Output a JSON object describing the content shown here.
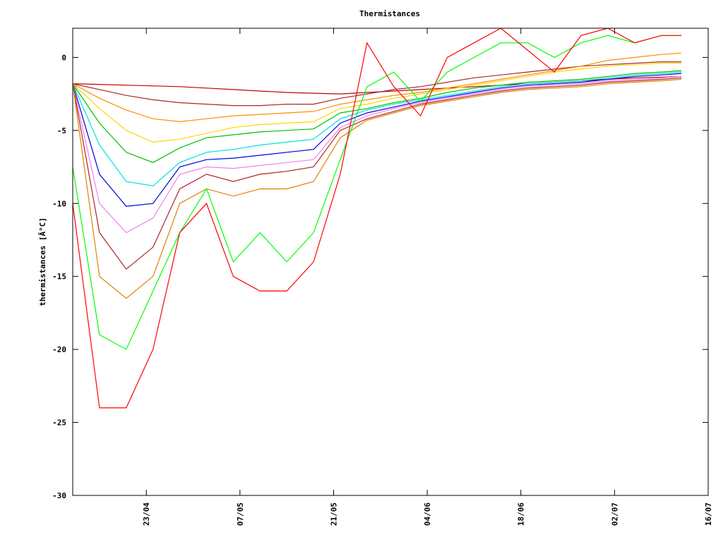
{
  "chart_data": {
    "type": "line",
    "title": "Thermistances",
    "y_label": "thermistances [Â°C]",
    "x": [
      "12/04",
      "16/04",
      "20/04",
      "24/04",
      "28/04",
      "02/05",
      "06/05",
      "10/05",
      "14/05",
      "18/05",
      "22/05",
      "26/05",
      "30/05",
      "03/06",
      "07/06",
      "11/06",
      "15/06",
      "19/06",
      "23/06",
      "27/06",
      "01/07",
      "05/07",
      "09/07",
      "12/07"
    ],
    "xlim": [
      "12/04",
      "16/07"
    ],
    "xticks": [
      "23/04",
      "07/05",
      "21/05",
      "04/06",
      "18/06",
      "02/07",
      "16/07"
    ],
    "ylim": [
      -30,
      2
    ],
    "yticks": [
      -30,
      -25,
      -20,
      -15,
      -10,
      -5,
      0
    ],
    "series": [
      {
        "color": "#c00000",
        "values": [
          -1.8,
          -1.85,
          -1.9,
          -1.95,
          -2.0,
          -2.1,
          -2.2,
          -2.3,
          -2.4,
          -2.45,
          -2.5,
          -2.4,
          -2.3,
          -2.2,
          -2.1,
          -2.0,
          -1.9,
          -1.8,
          -1.7,
          -1.6,
          -1.5,
          -1.4,
          -1.35,
          -1.3
        ]
      },
      {
        "color": "#a52a2a",
        "values": [
          -1.8,
          -2.2,
          -2.6,
          -2.9,
          -3.1,
          -3.2,
          -3.3,
          -3.3,
          -3.2,
          -3.2,
          -2.8,
          -2.5,
          -2.2,
          -2.0,
          -1.7,
          -1.4,
          -1.2,
          -1.0,
          -0.8,
          -0.6,
          -0.5,
          -0.4,
          -0.3,
          -0.3
        ]
      },
      {
        "color": "#ff8c00",
        "values": [
          -1.8,
          -2.8,
          -3.6,
          -4.2,
          -4.4,
          -4.2,
          -4.0,
          -3.9,
          -3.8,
          -3.7,
          -3.2,
          -2.9,
          -2.6,
          -2.4,
          -2.1,
          -1.8,
          -1.5,
          -1.2,
          -0.9,
          -0.6,
          -0.2,
          0.0,
          0.2,
          0.3
        ]
      },
      {
        "color": "#ffd700",
        "values": [
          -1.8,
          -3.5,
          -5.0,
          -5.8,
          -5.6,
          -5.2,
          -4.8,
          -4.6,
          -4.5,
          -4.4,
          -3.5,
          -3.2,
          -2.8,
          -2.5,
          -2.2,
          -1.9,
          -1.6,
          -1.3,
          -1.0,
          -0.8,
          -0.6,
          -0.5,
          -0.4,
          -0.4
        ]
      },
      {
        "color": "#00c000",
        "values": [
          -1.8,
          -4.5,
          -6.5,
          -7.2,
          -6.2,
          -5.5,
          -5.3,
          -5.1,
          -5.0,
          -4.9,
          -3.8,
          -3.5,
          -3.1,
          -2.8,
          -2.4,
          -2.1,
          -1.9,
          -1.7,
          -1.6,
          -1.5,
          -1.3,
          -1.1,
          -1.0,
          -0.9
        ]
      },
      {
        "color": "#00e0e0",
        "values": [
          -1.8,
          -6,
          -8.5,
          -8.8,
          -7.2,
          -6.5,
          -6.3,
          -6.0,
          -5.8,
          -5.6,
          -4.2,
          -3.6,
          -3.2,
          -2.9,
          -2.6,
          -2.3,
          -2.0,
          -1.8,
          -1.7,
          -1.6,
          -1.4,
          -1.2,
          -1.1,
          -1.0
        ]
      },
      {
        "color": "#0000e0",
        "values": [
          -1.8,
          -8,
          -10.2,
          -10,
          -7.5,
          -7.0,
          -6.9,
          -6.7,
          -6.5,
          -6.3,
          -4.5,
          -3.8,
          -3.4,
          -3.0,
          -2.7,
          -2.4,
          -2.1,
          -1.9,
          -1.8,
          -1.7,
          -1.5,
          -1.3,
          -1.2,
          -1.1
        ]
      },
      {
        "color": "#ee82ee",
        "values": [
          -1.8,
          -10,
          -12,
          -11,
          -8,
          -7.5,
          -7.6,
          -7.4,
          -7.2,
          -7.0,
          -4.8,
          -4,
          -3.5,
          -3.1,
          -2.8,
          -2.5,
          -2.2,
          -2.0,
          -1.9,
          -1.8,
          -1.6,
          -1.5,
          -1.4,
          -1.3
        ]
      },
      {
        "color": "#b22222",
        "values": [
          -1.8,
          -12,
          -14.5,
          -13,
          -9,
          -8,
          -8.5,
          -8,
          -7.8,
          -7.5,
          -5,
          -4.2,
          -3.7,
          -3.2,
          -2.9,
          -2.6,
          -2.3,
          -2.1,
          -2.0,
          -1.9,
          -1.7,
          -1.6,
          -1.5,
          -1.4
        ]
      },
      {
        "color": "#e08000",
        "values": [
          -1.8,
          -15,
          -16.5,
          -15,
          -10,
          -9,
          -9.5,
          -9,
          -9,
          -8.5,
          -5.5,
          -4.3,
          -3.8,
          -3.3,
          -3,
          -2.7,
          -2.4,
          -2.2,
          -2.1,
          -2.0,
          -1.8,
          -1.7,
          -1.6,
          -1.5
        ]
      },
      {
        "color": "#00ff00",
        "values": [
          -7.5,
          -19,
          -20,
          -16,
          -12,
          -9,
          -14,
          -12,
          -14,
          -12,
          -7,
          -2,
          -1,
          -3,
          -1,
          0,
          1,
          1,
          0,
          1,
          1.5,
          1,
          1.5,
          1.5
        ]
      },
      {
        "color": "#ff0000",
        "values": [
          -10,
          -24,
          -24,
          -20,
          -12,
          -10,
          -15,
          -16,
          -16,
          -14,
          -8,
          1,
          -2,
          -4,
          0,
          1,
          2,
          0.5,
          -1,
          1.5,
          2,
          1,
          1.5,
          1.5
        ]
      }
    ]
  }
}
